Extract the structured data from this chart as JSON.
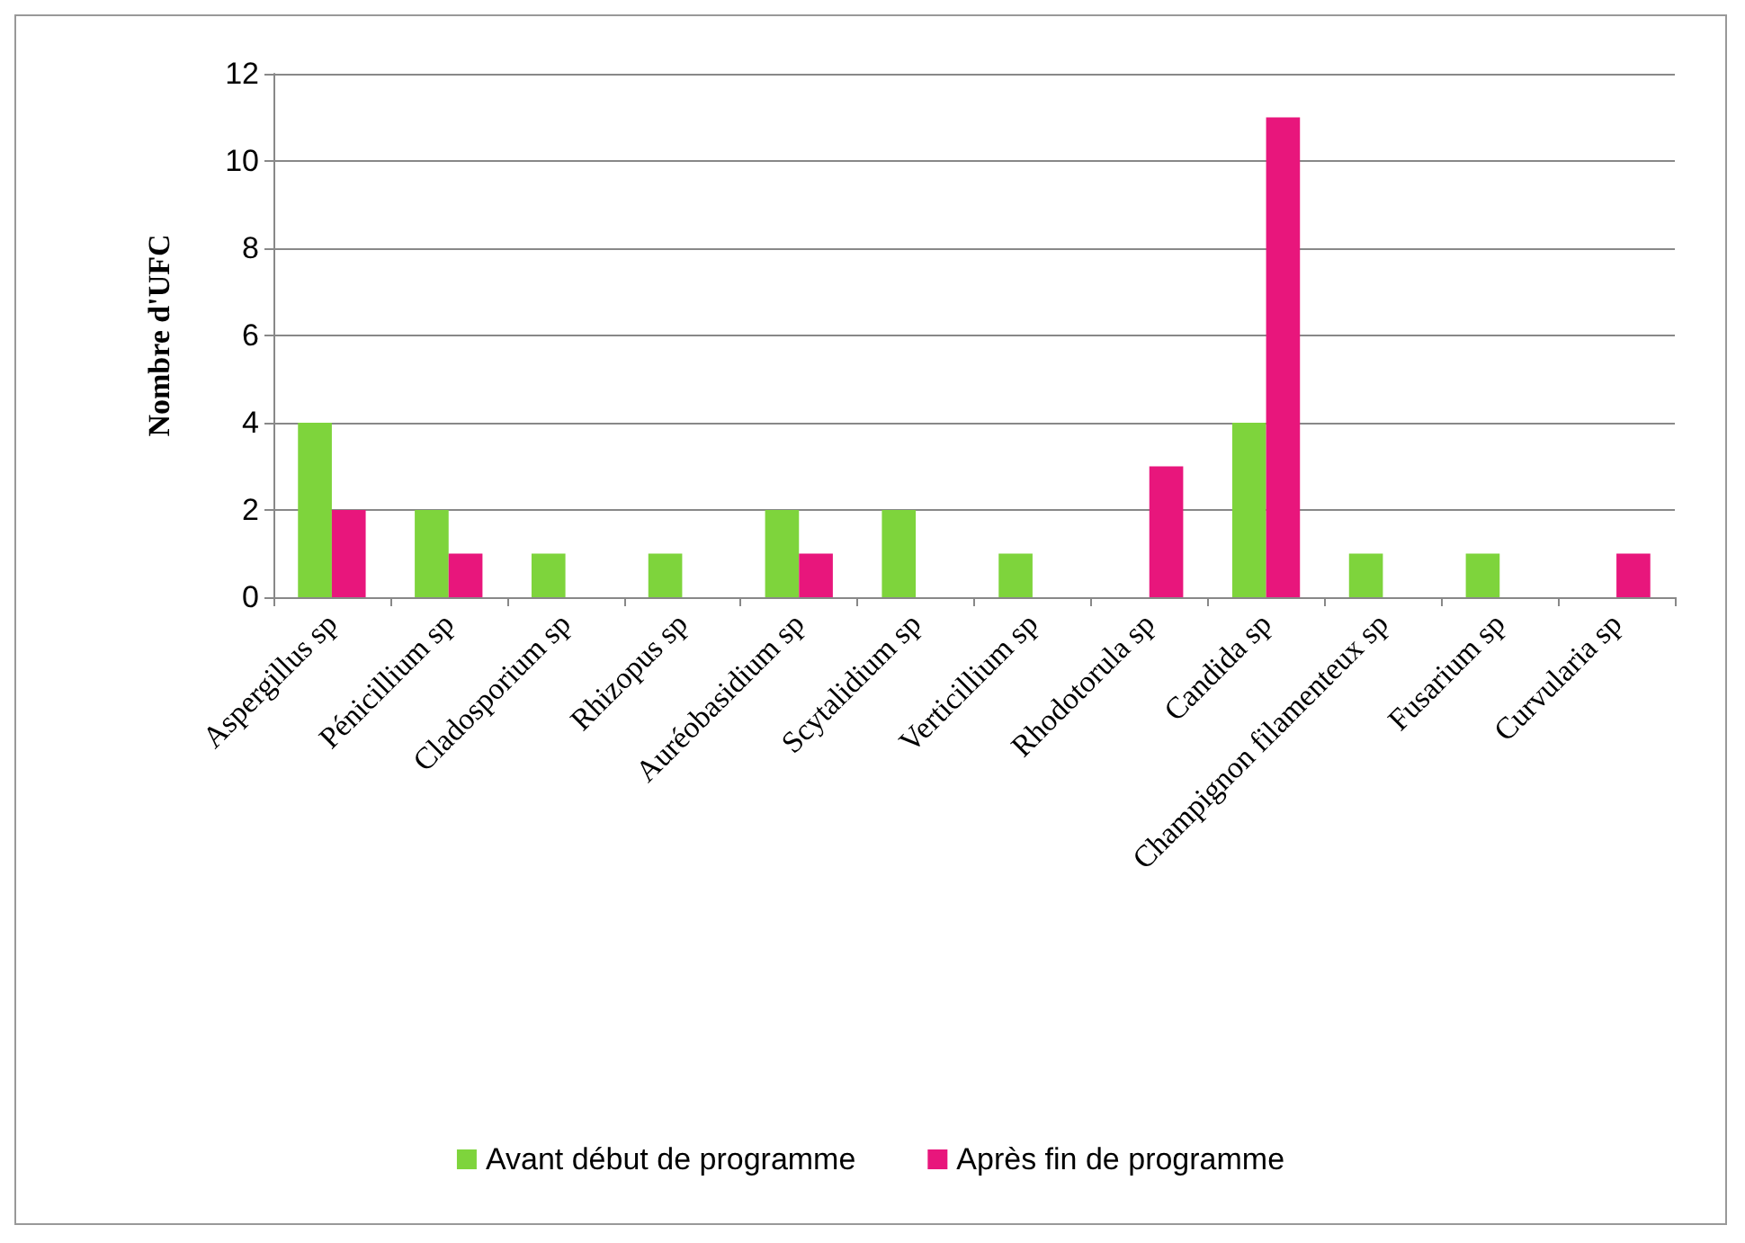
{
  "chart_data": {
    "type": "bar",
    "ylabel": "Nombre d'UFC",
    "categories": [
      "Aspergillus sp",
      "Pénicillium sp",
      "Cladosporium sp",
      "Rhizopus sp",
      "Auréobasidium sp",
      "Scytalidium sp",
      "Verticillium sp",
      "Rhodotorula sp",
      "Candida sp",
      "Champignon filamenteux sp",
      "Fusarium sp",
      "Curvularia sp"
    ],
    "series": [
      {
        "name": "Avant début de programme",
        "color": "#7ed43c",
        "values": [
          4,
          2,
          1,
          1,
          2,
          2,
          1,
          null,
          4,
          1,
          1,
          null
        ]
      },
      {
        "name": "Après fin de programme",
        "color": "#e8167c",
        "values": [
          2,
          1,
          null,
          null,
          1,
          null,
          null,
          3,
          11,
          null,
          null,
          1
        ]
      }
    ],
    "ylim": [
      0,
      12
    ],
    "yticks": [
      0,
      2,
      4,
      6,
      8,
      10,
      12
    ],
    "grid": "y",
    "legend": "bottom"
  }
}
